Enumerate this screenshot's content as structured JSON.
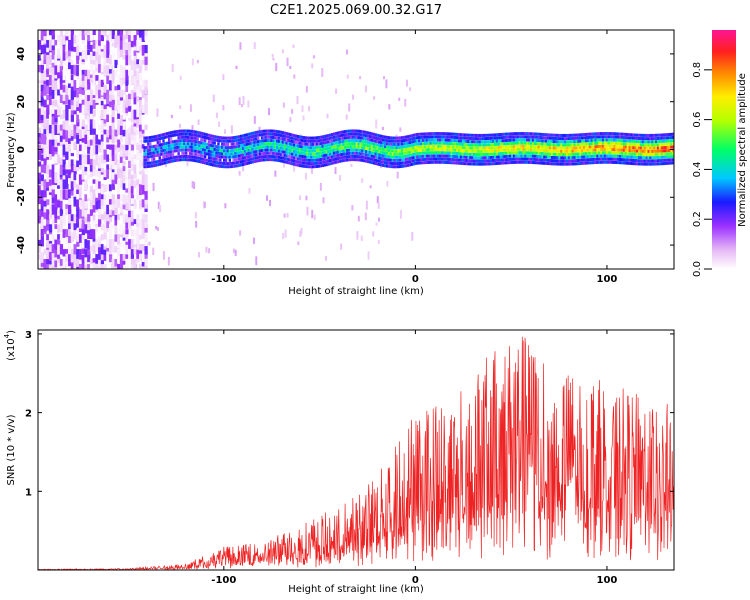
{
  "title": "C2E1.2025.069.00.32.G17",
  "chart_data": [
    {
      "type": "heatmap",
      "xlabel": "Height of straight line (km)",
      "ylabel": "Frequency (Hz)",
      "xlim": [
        -197,
        135
      ],
      "ylim": [
        -50,
        50
      ],
      "xticks": [
        -100,
        0,
        100
      ],
      "yticks": [
        -40,
        -20,
        0,
        20,
        40
      ],
      "colorbar": {
        "label": "Normalized spectral amplitude",
        "range": [
          0,
          0.96
        ],
        "ticks": [
          0.0,
          0.2,
          0.4,
          0.6,
          0.8
        ],
        "tick_labels": [
          "0.0",
          "0.2",
          "0.4",
          "0.6",
          "0.8"
        ],
        "colormap": "white-violet-blue-cyan-green-yellow-orange-red-magenta"
      },
      "features": {
        "noise_region_x": [
          -197,
          -140
        ],
        "signal_band_center_hz": 0,
        "signal_band_halfwidth_hz": 4
      }
    },
    {
      "type": "line",
      "xlabel": "Height of straight line (km)",
      "ylabel": "SNR (10 * v/v)",
      "multiplier_label": "(x10",
      "multiplier_exponent": "4",
      "multiplier_close": ")",
      "xlim": [
        -197,
        135
      ],
      "ylim": [
        0,
        3.05
      ],
      "xticks": [
        -100,
        0,
        100
      ],
      "yticks": [
        1,
        2,
        3
      ],
      "color": "#ee2222",
      "envelope": [
        {
          "x": -197,
          "y": 0.01
        },
        {
          "x": -150,
          "y": 0.02
        },
        {
          "x": -120,
          "y": 0.08
        },
        {
          "x": -100,
          "y": 0.3
        },
        {
          "x": -80,
          "y": 0.35
        },
        {
          "x": -60,
          "y": 0.6
        },
        {
          "x": -40,
          "y": 0.8
        },
        {
          "x": -20,
          "y": 1.2
        },
        {
          "x": 0,
          "y": 2.1
        },
        {
          "x": 20,
          "y": 2.2
        },
        {
          "x": 40,
          "y": 2.8
        },
        {
          "x": 55,
          "y": 3.05
        },
        {
          "x": 70,
          "y": 2.6
        },
        {
          "x": 90,
          "y": 2.5
        },
        {
          "x": 110,
          "y": 2.3
        },
        {
          "x": 135,
          "y": 2.1
        }
      ]
    }
  ]
}
